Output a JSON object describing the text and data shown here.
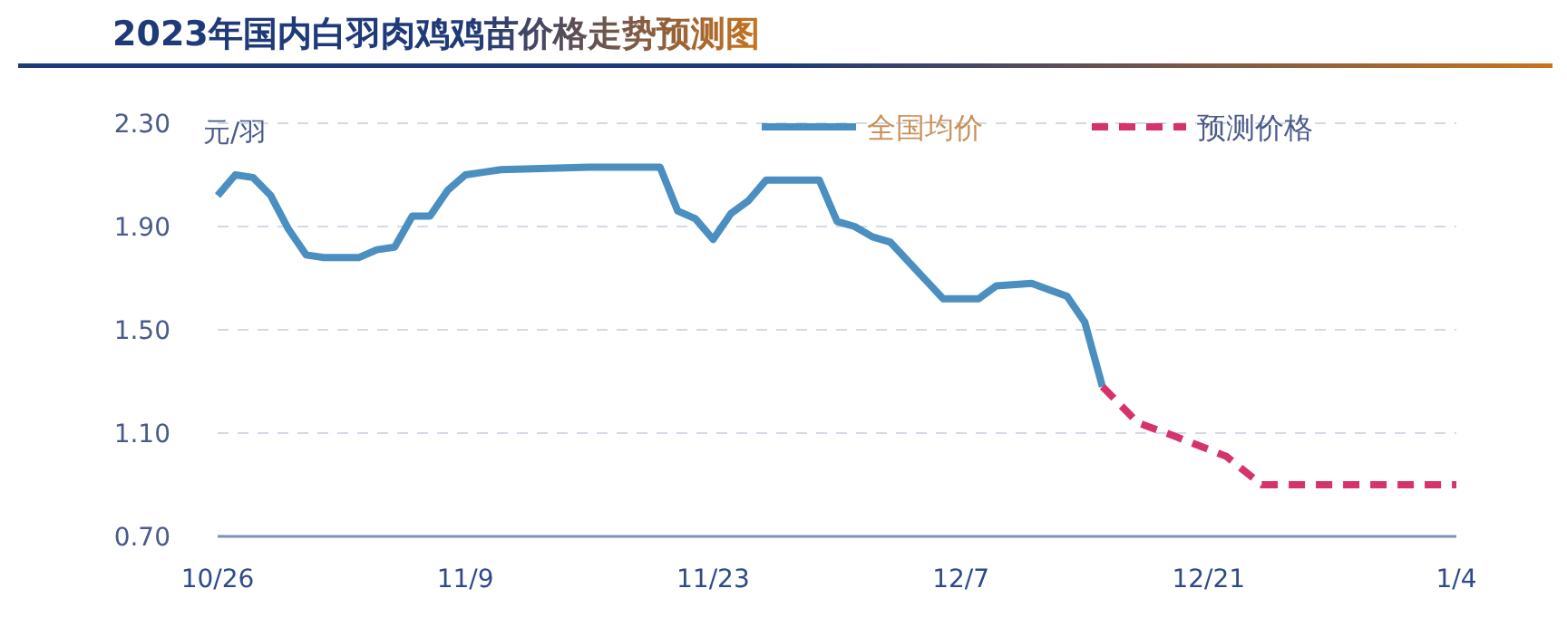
{
  "chart_data": {
    "type": "line",
    "title": "2023年国内白羽肉鸡鸡苗价格走势预测图",
    "ylabel": "元/羽",
    "xlim": [
      "2023-10-26",
      "2024-01-04"
    ],
    "xticks": [
      {
        "value": "2023-10-26",
        "label": "10/26"
      },
      {
        "value": "2023-11-09",
        "label": "11/9"
      },
      {
        "value": "2023-11-23",
        "label": "11/23"
      },
      {
        "value": "2023-12-07",
        "label": "12/7"
      },
      {
        "value": "2023-12-21",
        "label": "12/21"
      },
      {
        "value": "2024-01-04",
        "label": "1/4"
      }
    ],
    "ylim": [
      0.7,
      2.3
    ],
    "yticks": [
      {
        "value": 0.7,
        "label": "0.70"
      },
      {
        "value": 1.1,
        "label": "1.10"
      },
      {
        "value": 1.5,
        "label": "1.50"
      },
      {
        "value": 1.9,
        "label": "1.90"
      },
      {
        "value": 2.3,
        "label": "2.30"
      }
    ],
    "grid": "y",
    "legend": "top right",
    "marker": "none",
    "series": [
      {
        "name": "全国均价",
        "color": "#4a8fc0",
        "line_style": "solid",
        "x": [
          "2023-10-26",
          "2023-10-27",
          "2023-10-28",
          "2023-10-29",
          "2023-10-30",
          "2023-10-31",
          "2023-11-01",
          "2023-11-03",
          "2023-11-04",
          "2023-11-05",
          "2023-11-06",
          "2023-11-07",
          "2023-11-08",
          "2023-11-09",
          "2023-11-10",
          "2023-11-11",
          "2023-11-16",
          "2023-11-20",
          "2023-11-21",
          "2023-11-22",
          "2023-11-23",
          "2023-11-24",
          "2023-11-25",
          "2023-11-26",
          "2023-11-29",
          "2023-11-30",
          "2023-12-01",
          "2023-12-02",
          "2023-12-03",
          "2023-12-06",
          "2023-12-08",
          "2023-12-09",
          "2023-12-11",
          "2023-12-13",
          "2023-12-14",
          "2023-12-15"
        ],
        "values": [
          2.02,
          2.1,
          2.09,
          2.02,
          1.89,
          1.79,
          1.78,
          1.78,
          1.81,
          1.82,
          1.94,
          1.94,
          2.04,
          2.1,
          2.11,
          2.12,
          2.13,
          2.13,
          1.96,
          1.93,
          1.85,
          1.95,
          2.0,
          2.08,
          2.08,
          1.92,
          1.9,
          1.86,
          1.84,
          1.62,
          1.62,
          1.67,
          1.68,
          1.63,
          1.53,
          1.28
        ]
      },
      {
        "name": "预测价格",
        "color": "#d6336c",
        "line_style": "dashed",
        "x": [
          "2023-12-15",
          "2023-12-17",
          "2023-12-19",
          "2023-12-22",
          "2023-12-24",
          "2024-01-04"
        ],
        "values": [
          1.28,
          1.14,
          1.09,
          1.01,
          0.9,
          0.9
        ]
      }
    ]
  }
}
